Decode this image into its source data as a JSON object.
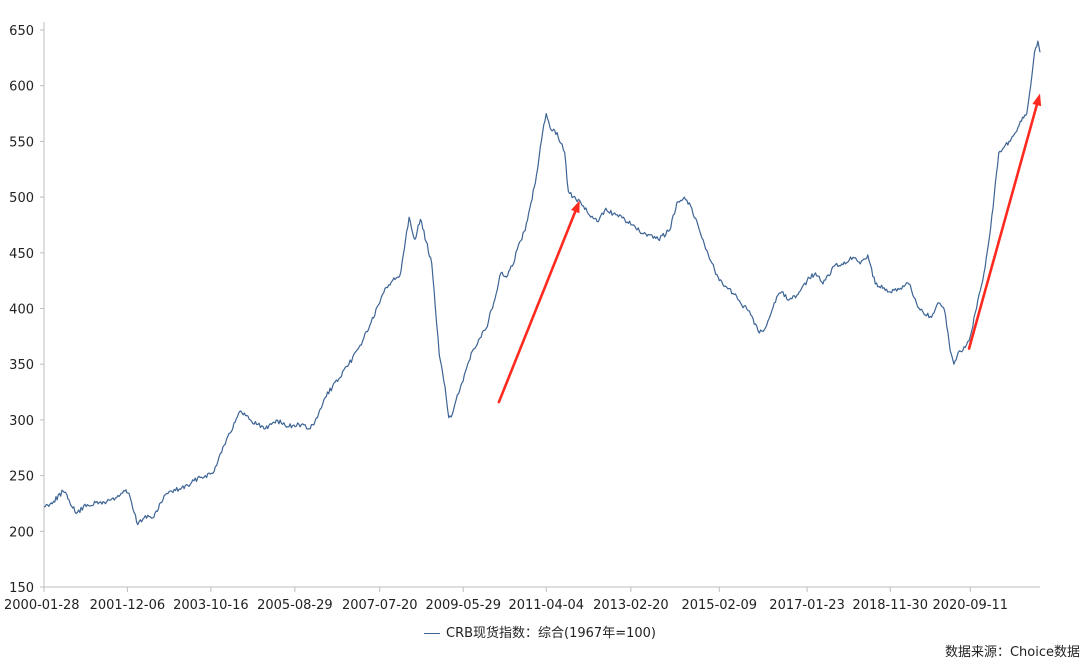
{
  "chart_data": {
    "type": "line",
    "title": "",
    "xlabel": "",
    "ylabel": "",
    "ylim": [
      150,
      650
    ],
    "yticks": [
      150,
      200,
      250,
      300,
      350,
      400,
      450,
      500,
      550,
      600,
      650
    ],
    "xticks": [
      "2000-01-28",
      "2001-12-06",
      "2003-10-16",
      "2005-08-29",
      "2007-07-20",
      "2009-05-29",
      "2011-04-04",
      "2013-02-20",
      "2015-02-09",
      "2017-01-23",
      "2018-11-30",
      "2020-09-11"
    ],
    "xrange": [
      "2000-01-28",
      "2022-04-01"
    ],
    "grid": false,
    "legend_position": "bottom-center",
    "series": [
      {
        "name": "CRB现货指数：综合(1967年=100)",
        "color": "#3d6494",
        "points": [
          [
            "2000-01-28",
            222
          ],
          [
            "2000-04-15",
            227
          ],
          [
            "2000-07-01",
            236
          ],
          [
            "2000-08-20",
            228
          ],
          [
            "2000-10-15",
            216
          ],
          [
            "2001-01-15",
            224
          ],
          [
            "2001-06-01",
            226
          ],
          [
            "2001-09-01",
            230
          ],
          [
            "2001-11-15",
            236
          ],
          [
            "2001-12-20",
            234
          ],
          [
            "2002-01-20",
            220
          ],
          [
            "2002-03-01",
            206
          ],
          [
            "2002-05-01",
            214
          ],
          [
            "2002-07-01",
            212
          ],
          [
            "2002-08-15",
            220
          ],
          [
            "2002-10-01",
            232
          ],
          [
            "2002-12-01",
            236
          ],
          [
            "2003-02-01",
            238
          ],
          [
            "2003-05-01",
            242
          ],
          [
            "2003-07-01",
            248
          ],
          [
            "2003-09-01",
            250
          ],
          [
            "2003-11-01",
            252
          ],
          [
            "2004-01-01",
            270
          ],
          [
            "2004-03-01",
            285
          ],
          [
            "2004-05-01",
            298
          ],
          [
            "2004-06-15",
            308
          ],
          [
            "2004-09-01",
            300
          ],
          [
            "2004-11-01",
            296
          ],
          [
            "2005-01-01",
            292
          ],
          [
            "2005-04-01",
            300
          ],
          [
            "2005-07-01",
            294
          ],
          [
            "2005-10-01",
            296
          ],
          [
            "2006-01-01",
            292
          ],
          [
            "2006-03-01",
            302
          ],
          [
            "2006-05-01",
            320
          ],
          [
            "2006-07-01",
            330
          ],
          [
            "2006-09-01",
            338
          ],
          [
            "2006-11-01",
            348
          ],
          [
            "2007-02-01",
            365
          ],
          [
            "2007-05-01",
            385
          ],
          [
            "2007-07-20",
            405
          ],
          [
            "2007-09-01",
            418
          ],
          [
            "2007-11-01",
            425
          ],
          [
            "2008-01-01",
            430
          ],
          [
            "2008-02-15",
            462
          ],
          [
            "2008-03-15",
            482
          ],
          [
            "2008-05-01",
            462
          ],
          [
            "2008-06-15",
            480
          ],
          [
            "2008-08-01",
            460
          ],
          [
            "2008-09-15",
            440
          ],
          [
            "2008-10-15",
            400
          ],
          [
            "2008-11-15",
            358
          ],
          [
            "2009-01-01",
            330
          ],
          [
            "2009-02-01",
            302
          ],
          [
            "2009-03-01",
            305
          ],
          [
            "2009-04-01",
            318
          ],
          [
            "2009-05-29",
            335
          ],
          [
            "2009-08-01",
            360
          ],
          [
            "2009-10-01",
            372
          ],
          [
            "2009-12-01",
            382
          ],
          [
            "2010-02-01",
            405
          ],
          [
            "2010-04-01",
            432
          ],
          [
            "2010-05-15",
            428
          ],
          [
            "2010-07-01",
            438
          ],
          [
            "2010-09-01",
            460
          ],
          [
            "2010-10-15",
            470
          ],
          [
            "2010-12-01",
            495
          ],
          [
            "2011-01-15",
            520
          ],
          [
            "2011-02-15",
            545
          ],
          [
            "2011-03-15",
            565
          ],
          [
            "2011-04-04",
            575
          ],
          [
            "2011-05-15",
            560
          ],
          [
            "2011-07-01",
            558
          ],
          [
            "2011-09-01",
            540
          ],
          [
            "2011-10-01",
            505
          ],
          [
            "2011-12-01",
            498
          ],
          [
            "2012-02-01",
            492
          ],
          [
            "2012-04-01",
            482
          ],
          [
            "2012-06-01",
            478
          ],
          [
            "2012-08-01",
            490
          ],
          [
            "2012-10-01",
            485
          ],
          [
            "2013-01-01",
            480
          ],
          [
            "2013-04-01",
            472
          ],
          [
            "2013-07-01",
            465
          ],
          [
            "2013-10-01",
            462
          ],
          [
            "2014-01-01",
            470
          ],
          [
            "2014-03-01",
            495
          ],
          [
            "2014-05-01",
            500
          ],
          [
            "2014-07-01",
            490
          ],
          [
            "2014-09-01",
            470
          ],
          [
            "2014-11-01",
            452
          ],
          [
            "2015-01-01",
            435
          ],
          [
            "2015-02-09",
            425
          ],
          [
            "2015-05-01",
            418
          ],
          [
            "2015-08-01",
            405
          ],
          [
            "2015-10-01",
            398
          ],
          [
            "2016-01-01",
            378
          ],
          [
            "2016-03-01",
            385
          ],
          [
            "2016-05-01",
            405
          ],
          [
            "2016-07-01",
            415
          ],
          [
            "2016-09-01",
            408
          ],
          [
            "2016-11-01",
            412
          ],
          [
            "2017-01-23",
            425
          ],
          [
            "2017-04-01",
            432
          ],
          [
            "2017-06-01",
            422
          ],
          [
            "2017-09-01",
            438
          ],
          [
            "2017-12-01",
            440
          ],
          [
            "2018-02-01",
            446
          ],
          [
            "2018-04-01",
            440
          ],
          [
            "2018-06-01",
            448
          ],
          [
            "2018-08-01",
            422
          ],
          [
            "2018-10-01",
            418
          ],
          [
            "2018-11-30",
            415
          ],
          [
            "2019-02-01",
            418
          ],
          [
            "2019-05-01",
            422
          ],
          [
            "2019-07-01",
            405
          ],
          [
            "2019-09-01",
            395
          ],
          [
            "2019-11-01",
            392
          ],
          [
            "2020-01-01",
            405
          ],
          [
            "2020-02-15",
            398
          ],
          [
            "2020-04-01",
            362
          ],
          [
            "2020-05-01",
            350
          ],
          [
            "2020-06-15",
            362
          ],
          [
            "2020-08-01",
            365
          ],
          [
            "2020-09-11",
            375
          ],
          [
            "2020-11-01",
            400
          ],
          [
            "2021-01-01",
            432
          ],
          [
            "2021-02-15",
            465
          ],
          [
            "2021-03-15",
            490
          ],
          [
            "2021-05-01",
            540
          ],
          [
            "2021-06-15",
            545
          ],
          [
            "2021-08-01",
            550
          ],
          [
            "2021-09-15",
            558
          ],
          [
            "2021-11-01",
            568
          ],
          [
            "2021-12-15",
            575
          ],
          [
            "2022-01-15",
            600
          ],
          [
            "2022-02-15",
            630
          ],
          [
            "2022-03-15",
            640
          ],
          [
            "2022-04-01",
            630
          ]
        ]
      }
    ],
    "annotations": [
      {
        "type": "arrow",
        "color": "#ff2a1f",
        "from": [
          "2010-03-15",
          316
        ],
        "to": [
          "2012-01-01",
          497
        ]
      },
      {
        "type": "arrow",
        "color": "#ff2a1f",
        "from": [
          "2020-09-01",
          364
        ],
        "to": [
          "2022-04-01",
          593
        ]
      }
    ],
    "source": "数据来源：Choice数据"
  }
}
